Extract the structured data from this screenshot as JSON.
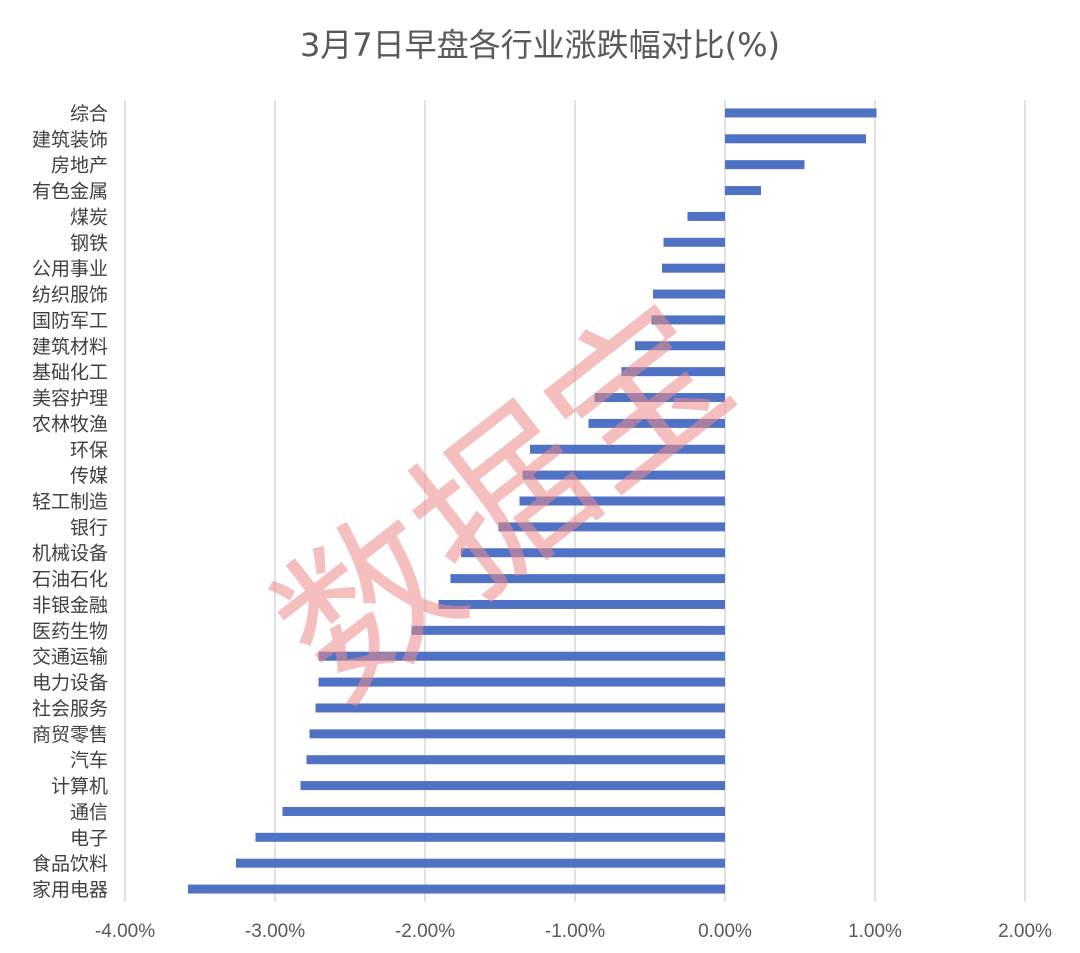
{
  "chart_data": {
    "type": "bar",
    "orientation": "horizontal",
    "title": "3月7日早盘各行业涨跌幅对比(%)",
    "categories": [
      "综合",
      "建筑装饰",
      "房地产",
      "有色金属",
      "煤炭",
      "钢铁",
      "公用事业",
      "纺织服饰",
      "国防军工",
      "建筑材料",
      "基础化工",
      "美容护理",
      "农林牧渔",
      "环保",
      "传媒",
      "轻工制造",
      "银行",
      "机械设备",
      "石油石化",
      "非银金融",
      "医药生物",
      "交通运输",
      "电力设备",
      "社会服务",
      "商贸零售",
      "汽车",
      "计算机",
      "通信",
      "电子",
      "食品饮料",
      "家用电器"
    ],
    "values": [
      1.01,
      0.94,
      0.53,
      0.24,
      -0.25,
      -0.41,
      -0.42,
      -0.48,
      -0.49,
      -0.6,
      -0.69,
      -0.87,
      -0.91,
      -1.3,
      -1.35,
      -1.37,
      -1.51,
      -1.76,
      -1.83,
      -1.91,
      -2.09,
      -2.71,
      -2.71,
      -2.73,
      -2.77,
      -2.79,
      -2.83,
      -2.95,
      -3.13,
      -3.26,
      -3.58
    ],
    "xlim": [
      -4,
      2
    ],
    "x_ticks": [
      -4,
      -3,
      -2,
      -1,
      0,
      1,
      2
    ],
    "x_tick_labels": [
      "-4.00%",
      "-3.00%",
      "-2.00%",
      "-1.00%",
      "0.00%",
      "1.00%",
      "2.00%"
    ],
    "grid": true,
    "legend": "none",
    "colors": {
      "bar": "#4f72c4",
      "grid": "#d9d9d9",
      "title": "#595959",
      "labels": "#404040"
    }
  },
  "watermark": {
    "text": "数据宝",
    "color": "#ef8a8a"
  }
}
